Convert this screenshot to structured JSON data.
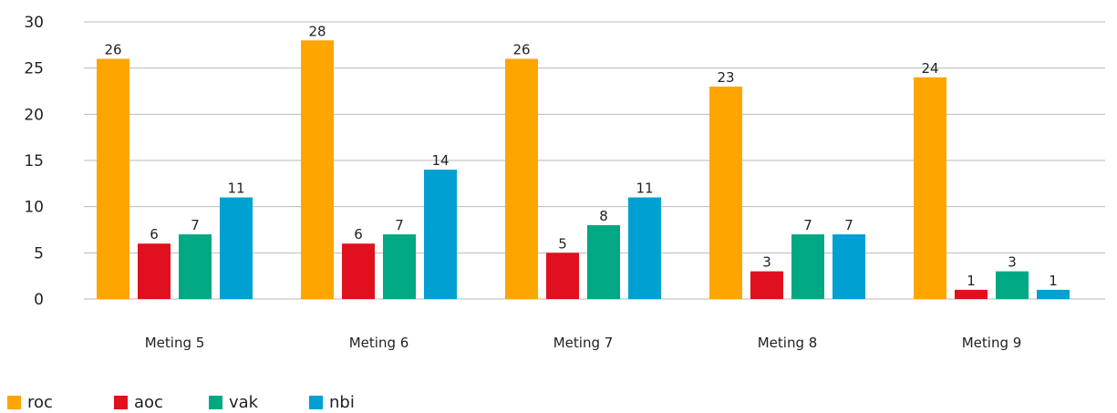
{
  "chart_data": {
    "type": "bar",
    "categories": [
      "Meting 5",
      "Meting 6",
      "Meting 7",
      "Meting 8",
      "Meting 9"
    ],
    "series": [
      {
        "name": "roc",
        "color": "#FFA500",
        "values": [
          26,
          28,
          26,
          23,
          24
        ]
      },
      {
        "name": "aoc",
        "color": "#E0101E",
        "values": [
          6,
          6,
          5,
          3,
          1
        ]
      },
      {
        "name": "vak",
        "color": "#00A884",
        "values": [
          7,
          7,
          8,
          7,
          3
        ]
      },
      {
        "name": "nbi",
        "color": "#00A0D2",
        "values": [
          11,
          14,
          11,
          7,
          1
        ]
      }
    ],
    "yticks": [
      0,
      5,
      10,
      15,
      20,
      25,
      30
    ],
    "ylim": [
      0,
      30
    ],
    "grid": true,
    "legend": "bottom-left",
    "data_labels": true
  }
}
